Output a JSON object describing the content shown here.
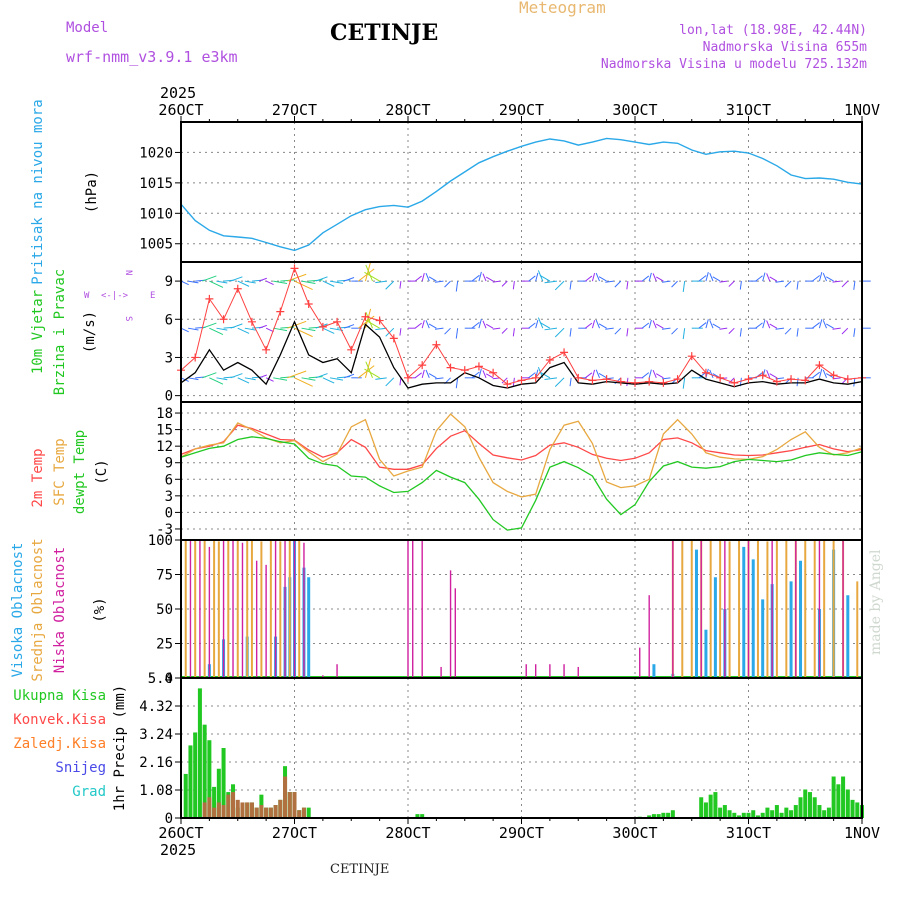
{
  "header": {
    "station": "CETINJE",
    "title": "Meteogram",
    "model_label": "Model",
    "model_name": "wrf-nmm_v3.9.1 e3km",
    "coords": "lon,lat (18.98E, 42.44N)",
    "altitude": "Nadmorska Visina 655m",
    "model_altitude": "Nadmorska Visina u modelu 725.132m"
  },
  "footer": {
    "station": "CETINJE",
    "signature": "made by Angel"
  },
  "time_axis": {
    "year": "2025",
    "day_labels": [
      "26OCT",
      "27OCT",
      "28OCT",
      "29OCT",
      "30OCT",
      "31OCT",
      "1NOV"
    ],
    "hours_total": 144
  },
  "colors": {
    "pressure": "#2aa8e8",
    "wind_label": "#22c822",
    "wind_obs": "#000000",
    "gust": "#ff4040",
    "temp2m": "#ff4848",
    "sfc": "#e8a840",
    "dew": "#22c822",
    "high_cloud": "#2aa8e8",
    "mid_cloud": "#e8a840",
    "low_cloud": "#d020a0",
    "total_precip": "#22c822",
    "conv_precip": "#ff4848",
    "strat_precip": "#ff7f27",
    "snow": "#4a4ae8",
    "graupel": "#22c8c8",
    "dir_label": "#b050e0"
  },
  "chart_data": [
    {
      "type": "line",
      "title": "Pritisak na nivou mora",
      "ylabel": "(hPa)",
      "ylim": [
        1002,
        1025
      ],
      "yticks": [
        1005,
        1010,
        1015,
        1020
      ],
      "x": [
        0,
        3,
        6,
        9,
        12,
        15,
        18,
        21,
        24,
        27,
        30,
        33,
        36,
        39,
        42,
        45,
        48,
        51,
        54,
        57,
        60,
        63,
        66,
        69,
        72,
        75,
        78,
        81,
        84,
        87,
        90,
        93,
        96,
        99,
        102,
        105,
        108,
        111,
        114,
        117,
        120,
        123,
        126,
        129,
        132,
        135,
        138,
        141,
        144
      ],
      "values": [
        1011.5,
        1008.8,
        1007.2,
        1006.3,
        1006.1,
        1005.9,
        1005.2,
        1004.5,
        1003.9,
        1004.8,
        1006.8,
        1008.2,
        1009.6,
        1010.6,
        1011.1,
        1011.3,
        1011.0,
        1012.0,
        1013.6,
        1015.3,
        1016.8,
        1018.3,
        1019.3,
        1020.2,
        1021.0,
        1021.7,
        1022.2,
        1021.9,
        1021.2,
        1021.7,
        1022.3,
        1022.1,
        1021.7,
        1021.3,
        1021.7,
        1021.5,
        1020.4,
        1019.7,
        1020.1,
        1020.2,
        1019.9,
        1019.0,
        1017.8,
        1016.3,
        1015.7,
        1015.8,
        1015.6,
        1015.1,
        1014.8
      ]
    },
    {
      "type": "line",
      "title": "10m Vjetar Brzina i Pravac",
      "ylabel": "(m/s)",
      "ylim": [
        -0.5,
        10.5
      ],
      "yticks": [
        0,
        3,
        6,
        9
      ],
      "direction_legend": {
        "north": "N",
        "south": "S",
        "east": "E",
        "west": "W"
      },
      "barb_rows": [
        1.4,
        5.3,
        9.0
      ],
      "x": [
        0,
        3,
        6,
        9,
        12,
        15,
        18,
        21,
        24,
        27,
        30,
        33,
        36,
        39,
        42,
        45,
        48,
        51,
        54,
        57,
        60,
        63,
        66,
        69,
        72,
        75,
        78,
        81,
        84,
        87,
        90,
        93,
        96,
        99,
        102,
        105,
        108,
        111,
        114,
        117,
        120,
        123,
        126,
        129,
        132,
        135,
        138,
        141,
        144
      ],
      "series": [
        {
          "name": "wind_speed",
          "values": [
            1.0,
            1.8,
            3.6,
            2.0,
            2.6,
            2.0,
            0.9,
            3.2,
            5.8,
            3.2,
            2.6,
            2.9,
            1.8,
            5.6,
            4.6,
            2.2,
            0.6,
            0.9,
            1.0,
            1.0,
            1.8,
            1.4,
            0.8,
            0.6,
            0.9,
            1.0,
            2.2,
            2.6,
            1.0,
            0.9,
            1.1,
            1.0,
            0.9,
            1.0,
            0.9,
            1.0,
            2.0,
            1.3,
            1.0,
            0.7,
            1.0,
            1.1,
            0.9,
            1.0,
            1.0,
            1.3,
            1.0,
            0.9,
            1.1
          ]
        },
        {
          "name": "wind_gust",
          "values": [
            2.0,
            3.0,
            7.6,
            6.0,
            8.4,
            5.8,
            3.6,
            6.6,
            10.0,
            7.2,
            5.4,
            5.8,
            3.6,
            6.2,
            5.9,
            4.5,
            1.4,
            2.4,
            4.0,
            2.2,
            2.0,
            2.3,
            1.8,
            0.9,
            1.2,
            1.4,
            2.8,
            3.4,
            1.4,
            1.2,
            1.3,
            1.1,
            1.0,
            1.1,
            1.0,
            1.3,
            3.1,
            1.8,
            1.4,
            1.0,
            1.3,
            1.6,
            1.1,
            1.3,
            1.2,
            2.4,
            1.6,
            1.3,
            1.4
          ]
        }
      ]
    },
    {
      "type": "line",
      "title": "Temperature",
      "ylabel": "(C)",
      "ylim": [
        -5,
        20
      ],
      "yticks": [
        -3,
        0,
        3,
        6,
        9,
        12,
        15,
        18
      ],
      "x": [
        0,
        3,
        6,
        9,
        12,
        15,
        18,
        21,
        24,
        27,
        30,
        33,
        36,
        39,
        42,
        45,
        48,
        51,
        54,
        57,
        60,
        63,
        66,
        69,
        72,
        75,
        78,
        81,
        84,
        87,
        90,
        93,
        96,
        99,
        102,
        105,
        108,
        111,
        114,
        117,
        120,
        123,
        126,
        129,
        132,
        135,
        138,
        141,
        144
      ],
      "series": [
        {
          "name": "2m Temp",
          "values": [
            10.5,
            11.5,
            12.0,
            12.8,
            15.8,
            15.2,
            14.2,
            13.2,
            13.1,
            11.3,
            10.0,
            10.8,
            13.2,
            11.8,
            8.2,
            7.8,
            7.8,
            8.6,
            11.6,
            13.8,
            14.8,
            12.5,
            10.4,
            9.9,
            9.5,
            10.3,
            12.2,
            12.6,
            11.8,
            10.5,
            9.8,
            9.4,
            9.8,
            10.8,
            13.2,
            13.5,
            12.6,
            11.2,
            10.8,
            10.4,
            10.3,
            10.4,
            10.8,
            11.2,
            11.8,
            12.3,
            11.5,
            11.0,
            11.4
          ]
        },
        {
          "name": "SFC Temp",
          "values": [
            10.0,
            11.5,
            12.2,
            12.6,
            16.2,
            15.0,
            13.5,
            12.6,
            13.0,
            11.0,
            9.2,
            10.6,
            15.5,
            16.8,
            9.6,
            6.6,
            7.5,
            8.2,
            14.8,
            17.8,
            15.5,
            10.0,
            5.4,
            3.8,
            2.8,
            3.3,
            11.4,
            15.8,
            16.5,
            12.5,
            5.5,
            4.5,
            4.8,
            6.0,
            14.2,
            16.8,
            14.2,
            10.8,
            10.0,
            9.7,
            9.6,
            10.1,
            11.4,
            13.2,
            14.6,
            11.8,
            10.4,
            10.8,
            11.7
          ]
        },
        {
          "name": "dewpt Temp",
          "values": [
            10.0,
            10.8,
            11.6,
            12.0,
            13.2,
            13.7,
            13.4,
            12.8,
            12.4,
            9.8,
            8.8,
            8.4,
            6.6,
            6.4,
            4.8,
            3.6,
            3.8,
            5.4,
            7.6,
            6.4,
            5.4,
            2.4,
            -1.3,
            -3.2,
            -2.8,
            2.2,
            8.2,
            9.2,
            8.1,
            6.6,
            2.4,
            -0.4,
            1.4,
            5.6,
            8.4,
            9.2,
            8.2,
            8.0,
            8.3,
            9.2,
            9.6,
            9.4,
            9.2,
            9.5,
            10.3,
            10.8,
            10.5,
            10.3,
            11.0
          ]
        }
      ]
    },
    {
      "type": "bar",
      "title": "Oblacnost",
      "ylabel": "(%)",
      "ylim": [
        0,
        100
      ],
      "yticks": [
        0,
        25,
        50,
        75,
        100
      ],
      "series": [
        {
          "name": "Visoka Oblacnost",
          "x": [
            6,
            9,
            14,
            20,
            22,
            23,
            24,
            26,
            27,
            100,
            104,
            109,
            111,
            113,
            115,
            119,
            121,
            123,
            125,
            129,
            131,
            135,
            138,
            141
          ],
          "values": [
            10,
            28,
            30,
            30,
            66,
            73,
            100,
            80,
            73,
            10,
            3,
            93,
            35,
            73,
            50,
            95,
            86,
            57,
            68,
            70,
            85,
            50,
            93,
            60
          ]
        },
        {
          "name": "Srednja Oblacnost",
          "x": [
            1,
            3,
            5,
            7,
            8,
            10,
            12,
            14,
            15,
            17,
            19,
            21,
            23,
            25,
            104,
            106,
            108,
            110,
            112,
            114,
            116,
            118,
            120,
            122,
            124,
            126,
            128,
            130,
            132,
            134,
            136,
            138,
            140,
            143
          ],
          "values": [
            100,
            100,
            100,
            100,
            99,
            100,
            100,
            100,
            100,
            99,
            100,
            99,
            100,
            100,
            100,
            100,
            100,
            100,
            100,
            100,
            99,
            100,
            100,
            100,
            99,
            100,
            100,
            100,
            100,
            100,
            100,
            100,
            100,
            70
          ]
        },
        {
          "name": "Niska Oblacnost",
          "x": [
            2,
            4,
            6,
            9,
            11,
            13,
            16,
            18,
            20,
            22,
            24,
            26,
            30,
            33,
            48,
            49,
            51,
            55,
            57,
            58,
            73,
            75,
            78,
            81,
            84,
            97,
            99,
            104,
            110,
            115,
            120,
            125,
            130,
            135,
            140
          ],
          "values": [
            100,
            100,
            95,
            100,
            100,
            98,
            85,
            82,
            100,
            100,
            100,
            98,
            2,
            10,
            100,
            100,
            100,
            8,
            78,
            65,
            10,
            10,
            10,
            10,
            8,
            22,
            60,
            100,
            100,
            100,
            100,
            100,
            100,
            100,
            100
          ]
        }
      ]
    },
    {
      "type": "bar",
      "title": "1hr Precip",
      "ylabel": "(mm)",
      "ylim": [
        0,
        5.4
      ],
      "yticks": [
        0,
        1.08,
        2.16,
        3.24,
        4.32,
        5.4
      ],
      "tick_labels": [
        "0",
        "1.08",
        "2.16",
        "3.24",
        "4.32",
        "5.4"
      ],
      "legend": [
        "Ukupna Kisa",
        "Konvek.Kisa",
        "Zaledj.Kisa",
        "Snijeg",
        "Grad"
      ],
      "total_precip": {
        "x": [
          1,
          2,
          3,
          4,
          5,
          6,
          7,
          8,
          9,
          10,
          11,
          12,
          13,
          14,
          15,
          16,
          17,
          18,
          19,
          20,
          21,
          22,
          23,
          24,
          25,
          26,
          27,
          50,
          51,
          97,
          99,
          100,
          101,
          102,
          103,
          104,
          110,
          111,
          112,
          113,
          114,
          115,
          116,
          117,
          118,
          119,
          120,
          121,
          122,
          123,
          124,
          125,
          126,
          127,
          128,
          129,
          130,
          131,
          132,
          133,
          134,
          135,
          136,
          137,
          138,
          139,
          140,
          141,
          142,
          143,
          144
        ],
        "values": [
          1.7,
          2.8,
          3.3,
          5.0,
          3.6,
          3.0,
          1.2,
          1.9,
          2.7,
          1.0,
          1.3,
          0.4,
          0.3,
          0.6,
          0.6,
          0.4,
          0.9,
          0.4,
          0.4,
          0.5,
          0.7,
          2.0,
          1.0,
          1.0,
          0.3,
          0.4,
          0.4,
          0.15,
          0.15,
          0.05,
          0.1,
          0.15,
          0.15,
          0.2,
          0.2,
          0.3,
          0.8,
          0.6,
          0.9,
          1.0,
          0.4,
          0.5,
          0.3,
          0.2,
          0.1,
          0.2,
          0.2,
          0.3,
          0.1,
          0.2,
          0.4,
          0.3,
          0.5,
          0.2,
          0.4,
          0.3,
          0.5,
          0.8,
          1.1,
          1.0,
          0.8,
          0.5,
          0.3,
          0.4,
          1.6,
          1.3,
          1.6,
          1.1,
          0.7,
          0.6,
          0.5
        ]
      },
      "conv_precip": {
        "x": [
          5,
          6,
          7,
          8,
          9,
          10,
          11,
          12,
          13,
          14,
          15,
          16,
          17,
          18,
          19,
          20,
          21,
          22,
          23,
          24,
          25,
          26
        ],
        "values": [
          0.6,
          0.8,
          0.4,
          0.6,
          0.5,
          0.9,
          1.0,
          0.7,
          0.6,
          0.6,
          0.6,
          0.4,
          0.5,
          0.4,
          0.4,
          0.5,
          0.7,
          1.6,
          1.0,
          1.0,
          0.3,
          0.4
        ]
      }
    }
  ]
}
